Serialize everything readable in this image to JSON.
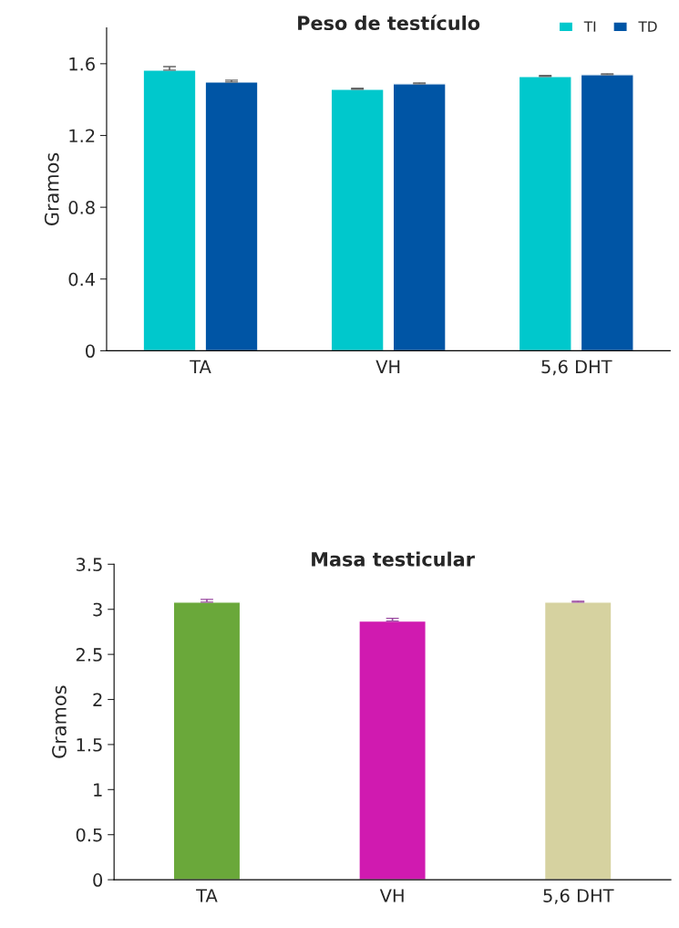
{
  "chart_data": [
    {
      "type": "bar",
      "title": "Peso de testículo",
      "ylabel": "Gramos",
      "categories": [
        "TA",
        "VH",
        "5,6 DHT"
      ],
      "ylim": [
        0,
        1.8
      ],
      "yticks": [
        0,
        0.4,
        0.8,
        1.2,
        1.6
      ],
      "legend": "top right",
      "grid": false,
      "series": [
        {
          "name": "TI",
          "color": "#00c8cc",
          "values": [
            1.564,
            1.458,
            1.529
          ],
          "errors": [
            0.02,
            0.005,
            0.005
          ]
        },
        {
          "name": "TD",
          "color": "#0055a5",
          "values": [
            1.498,
            1.488,
            1.539
          ],
          "errors": [
            0.01,
            0.005,
            0.005
          ]
        }
      ]
    },
    {
      "type": "bar",
      "title": "Masa testicular",
      "ylabel": "Gramos",
      "categories": [
        "TA",
        "VH",
        "5,6 DHT"
      ],
      "ylim": [
        0,
        3.5
      ],
      "yticks": [
        0,
        0.5,
        1,
        1.5,
        2,
        2.5,
        3,
        3.5
      ],
      "grid": false,
      "colors": [
        "#6aa83a",
        "#d01ab0",
        "#d6d2a0"
      ],
      "values": [
        3.08,
        2.87,
        3.08
      ],
      "errors": [
        0.03,
        0.03,
        0.01
      ]
    }
  ]
}
